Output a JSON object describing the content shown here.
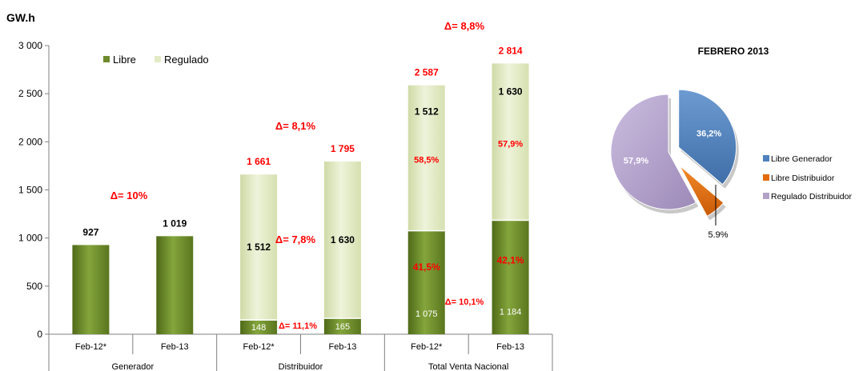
{
  "chart_data": [
    {
      "type": "bar",
      "stacked": true,
      "ylabel": "GW.h",
      "ylim": [
        0,
        3000
      ],
      "yticks": [
        "0",
        "500",
        "1 000",
        "1 500",
        "2 000",
        "2 500",
        "3 000"
      ],
      "ytick_values": [
        0,
        500,
        1000,
        1500,
        2000,
        2500,
        3000
      ],
      "legend": [
        "Libre",
        "Regulado"
      ],
      "groups": [
        "Generador",
        "Distribuidor",
        "Total Venta Nacional"
      ],
      "categories": [
        "Feb-12*",
        "Feb-13",
        "Feb-12*",
        "Feb-13",
        "Feb-12*",
        "Feb-13"
      ],
      "series": [
        {
          "name": "Libre",
          "values": [
            927,
            1019,
            148,
            165,
            1075,
            1184
          ],
          "color": "#6e8a2c"
        },
        {
          "name": "Regulado",
          "values": [
            0,
            0,
            1512,
            1630,
            1512,
            1630
          ],
          "color": "#e3ebc6"
        }
      ],
      "totals": [
        "927",
        "1 019",
        "1 661",
        "1 795",
        "2 587",
        "2 814"
      ],
      "segment_labels": {
        "libre": [
          "",
          "",
          "148",
          "165",
          "1 075",
          "1 184"
        ],
        "regulado": [
          "",
          "",
          "1 512",
          "1 630",
          "1 512",
          "1 630"
        ],
        "libre_pct": [
          "",
          "",
          "",
          "",
          "41,5%",
          "42,1%"
        ],
        "regulado_pct": [
          "",
          "",
          "",
          "",
          "58,5%",
          "57,9%"
        ]
      },
      "annotations": {
        "gen_delta": "Δ= 10%",
        "dist_total_delta": "Δ= 8,1%",
        "dist_reg_delta": "Δ= 7,8%",
        "dist_lib_delta": "Δ= 11,1%",
        "nat_total_delta": "Δ= 8,8%",
        "nat_lib_delta": "Δ= 10,1%"
      }
    },
    {
      "type": "pie",
      "title": "FEBRERO 2013",
      "slices": [
        {
          "name": "Libre Generador",
          "value": 36.2,
          "label": "36,2%",
          "color": "#4f81bd"
        },
        {
          "name": "Libre Distribuidor",
          "value": 5.9,
          "label": "5.9%",
          "color": "#e36c09"
        },
        {
          "name": "Regulado Distribuidor",
          "value": 57.9,
          "label": "57,9%",
          "color": "#b3a2c7"
        }
      ]
    }
  ]
}
